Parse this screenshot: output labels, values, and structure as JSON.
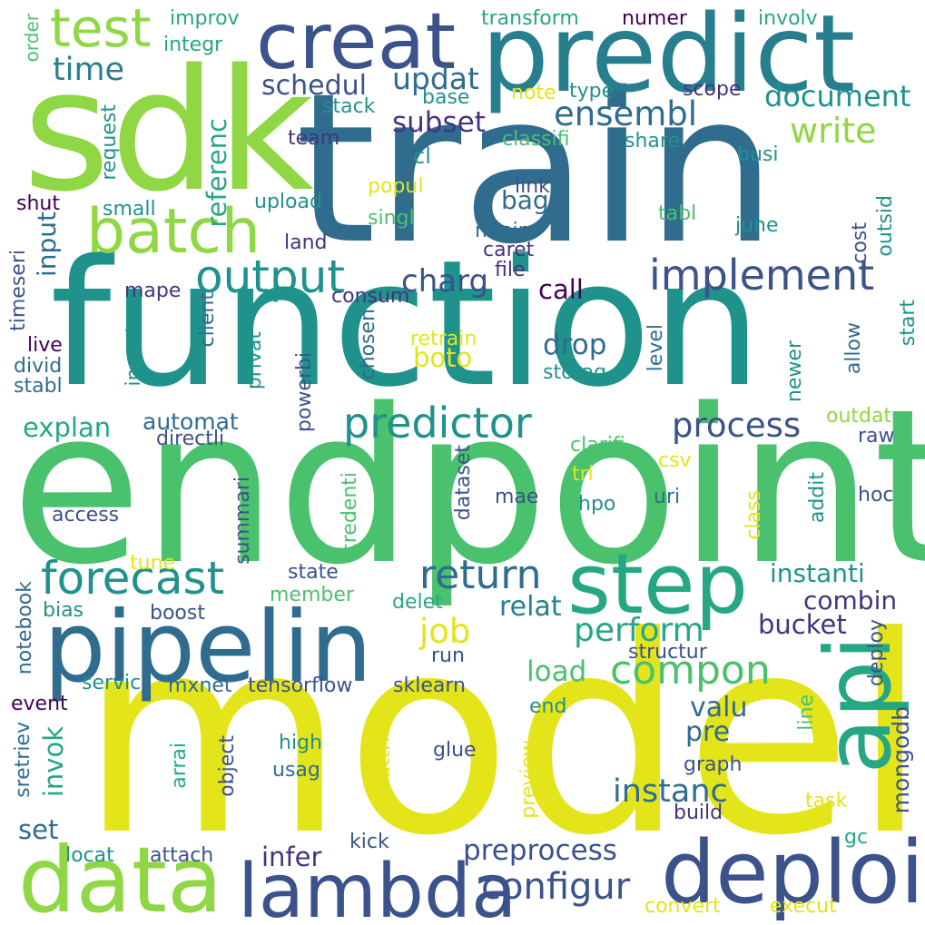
{
  "palette": {
    "yellow": "#e4e41a",
    "lime": "#8fd744",
    "green": "#4ac16d",
    "teal_green": "#26a784",
    "teal": "#20928c",
    "blue_teal": "#277f8e",
    "blue": "#2f6c8e",
    "indigo": "#3b528b",
    "dark_indigo": "#46337e",
    "purple": "#440154"
  },
  "words": [
    {
      "text": "model",
      "color": "yellow"
    },
    {
      "text": "endpoint",
      "color": "green"
    },
    {
      "text": "function",
      "color": "teal"
    },
    {
      "text": "train",
      "color": "blue"
    },
    {
      "text": "sdk",
      "color": "lime"
    },
    {
      "text": "predict",
      "color": "blue_teal"
    },
    {
      "text": "pipelin",
      "color": "blue"
    },
    {
      "text": "data",
      "color": "lime"
    },
    {
      "text": "deploi",
      "color": "indigo"
    },
    {
      "text": "lambda",
      "color": "indigo"
    },
    {
      "text": "creat",
      "color": "indigo"
    },
    {
      "text": "step",
      "color": "teal_green"
    },
    {
      "text": "api",
      "color": "teal_green"
    },
    {
      "text": "batch",
      "color": "lime"
    },
    {
      "text": "test",
      "color": "lime"
    },
    {
      "text": "forecast",
      "color": "teal"
    },
    {
      "text": "output",
      "color": "teal"
    },
    {
      "text": "implement",
      "color": "indigo"
    },
    {
      "text": "predictor",
      "color": "teal"
    },
    {
      "text": "return",
      "color": "blue"
    },
    {
      "text": "compon",
      "color": "green"
    },
    {
      "text": "perform",
      "color": "teal_green"
    },
    {
      "text": "configur",
      "color": "indigo"
    },
    {
      "text": "process",
      "color": "indigo"
    },
    {
      "text": "ensembl",
      "color": "blue"
    },
    {
      "text": "write",
      "color": "lime"
    },
    {
      "text": "document",
      "color": "teal"
    },
    {
      "text": "time",
      "color": "blue_teal"
    },
    {
      "text": "job",
      "color": "yellow"
    },
    {
      "text": "preprocess",
      "color": "indigo"
    },
    {
      "text": "instanc",
      "color": "blue"
    },
    {
      "text": "infer",
      "color": "dark_indigo"
    },
    {
      "text": "schedul",
      "color": "indigo"
    },
    {
      "text": "updat",
      "color": "blue"
    },
    {
      "text": "subset",
      "color": "dark_indigo"
    },
    {
      "text": "charg",
      "color": "indigo"
    },
    {
      "text": "instanti",
      "color": "teal"
    },
    {
      "text": "combin",
      "color": "dark_indigo"
    },
    {
      "text": "bucket",
      "color": "dark_indigo"
    },
    {
      "text": "relat",
      "color": "blue_teal"
    },
    {
      "text": "drop",
      "color": "blue"
    },
    {
      "text": "load",
      "color": "green"
    },
    {
      "text": "valu",
      "color": "blue"
    },
    {
      "text": "pre",
      "color": "blue"
    },
    {
      "text": "automat",
      "color": "blue"
    },
    {
      "text": "explan",
      "color": "teal_green"
    },
    {
      "text": "input",
      "color": "blue"
    },
    {
      "text": "invok",
      "color": "teal_green"
    },
    {
      "text": "set",
      "color": "blue"
    },
    {
      "text": "referenc",
      "color": "teal_green"
    },
    {
      "text": "call",
      "color": "purple"
    },
    {
      "text": "boto",
      "color": "yellow"
    },
    {
      "text": "bag",
      "color": "blue"
    },
    {
      "text": "mongodb",
      "color": "indigo"
    },
    {
      "text": "improv",
      "color": "teal_green"
    },
    {
      "text": "integr",
      "color": "teal_green"
    },
    {
      "text": "transform",
      "color": "teal_green"
    },
    {
      "text": "numer",
      "color": "purple"
    },
    {
      "text": "involv",
      "color": "teal_green"
    },
    {
      "text": "order",
      "color": "green"
    },
    {
      "text": "base",
      "color": "teal"
    },
    {
      "text": "note",
      "color": "yellow"
    },
    {
      "text": "type",
      "color": "teal"
    },
    {
      "text": "scope",
      "color": "dark_indigo"
    },
    {
      "text": "stack",
      "color": "teal"
    },
    {
      "text": "team",
      "color": "dark_indigo"
    },
    {
      "text": "classifi",
      "color": "green"
    },
    {
      "text": "share",
      "color": "teal"
    },
    {
      "text": "cl",
      "color": "teal"
    },
    {
      "text": "busi",
      "color": "teal"
    },
    {
      "text": "request",
      "color": "teal"
    },
    {
      "text": "popul",
      "color": "yellow"
    },
    {
      "text": "link",
      "color": "indigo"
    },
    {
      "text": "upload",
      "color": "teal"
    },
    {
      "text": "tabl",
      "color": "green"
    },
    {
      "text": "small",
      "color": "teal"
    },
    {
      "text": "singl",
      "color": "green"
    },
    {
      "text": "minim",
      "color": "blue"
    },
    {
      "text": "june",
      "color": "teal"
    },
    {
      "text": "shut",
      "color": "purple"
    },
    {
      "text": "land",
      "color": "dark_indigo"
    },
    {
      "text": "caret",
      "color": "dark_indigo"
    },
    {
      "text": "cost",
      "color": "indigo"
    },
    {
      "text": "outsid",
      "color": "teal"
    },
    {
      "text": "file",
      "color": "dark_indigo"
    },
    {
      "text": "timeseri",
      "color": "indigo"
    },
    {
      "text": "mape",
      "color": "dark_indigo"
    },
    {
      "text": "consum",
      "color": "dark_indigo"
    },
    {
      "text": "client",
      "color": "blue"
    },
    {
      "text": "chosen",
      "color": "blue"
    },
    {
      "text": "live",
      "color": "purple"
    },
    {
      "text": "divid",
      "color": "blue"
    },
    {
      "text": "stabl",
      "color": "blue"
    },
    {
      "text": "retrain",
      "color": "yellow"
    },
    {
      "text": "level",
      "color": "blue"
    },
    {
      "text": "start",
      "color": "teal"
    },
    {
      "text": "allow",
      "color": "blue"
    },
    {
      "text": "ingest",
      "color": "teal"
    },
    {
      "text": "privat",
      "color": "teal"
    },
    {
      "text": "powerbi",
      "color": "indigo"
    },
    {
      "text": "storag",
      "color": "teal"
    },
    {
      "text": "newer",
      "color": "teal"
    },
    {
      "text": "outdat",
      "color": "lime"
    },
    {
      "text": "raw",
      "color": "indigo"
    },
    {
      "text": "directli",
      "color": "indigo"
    },
    {
      "text": "clarifi",
      "color": "green"
    },
    {
      "text": "csv",
      "color": "yellow"
    },
    {
      "text": "tri",
      "color": "yellow"
    },
    {
      "text": "mae",
      "color": "indigo"
    },
    {
      "text": "hpo",
      "color": "teal"
    },
    {
      "text": "uri",
      "color": "blue"
    },
    {
      "text": "hoc",
      "color": "indigo"
    },
    {
      "text": "addit",
      "color": "teal"
    },
    {
      "text": "class",
      "color": "yellow"
    },
    {
      "text": "access",
      "color": "indigo"
    },
    {
      "text": "summari",
      "color": "indigo"
    },
    {
      "text": "credenti",
      "color": "green"
    },
    {
      "text": "dataset",
      "color": "indigo"
    },
    {
      "text": "tune",
      "color": "yellow"
    },
    {
      "text": "state",
      "color": "indigo"
    },
    {
      "text": "member",
      "color": "green"
    },
    {
      "text": "notebook",
      "color": "blue"
    },
    {
      "text": "bias",
      "color": "teal"
    },
    {
      "text": "boost",
      "color": "indigo"
    },
    {
      "text": "delet",
      "color": "teal_green"
    },
    {
      "text": "run",
      "color": "indigo"
    },
    {
      "text": "structur",
      "color": "indigo"
    },
    {
      "text": "deploy",
      "color": "indigo"
    },
    {
      "text": "servic",
      "color": "teal"
    },
    {
      "text": "mxnet",
      "color": "blue"
    },
    {
      "text": "tensorflow",
      "color": "indigo"
    },
    {
      "text": "sklearn",
      "color": "indigo"
    },
    {
      "text": "event",
      "color": "purple"
    },
    {
      "text": "end",
      "color": "teal"
    },
    {
      "text": "line",
      "color": "green"
    },
    {
      "text": "sretriev",
      "color": "blue"
    },
    {
      "text": "high",
      "color": "teal"
    },
    {
      "text": "glue",
      "color": "indigo"
    },
    {
      "text": "graph",
      "color": "indigo"
    },
    {
      "text": "object",
      "color": "indigo"
    },
    {
      "text": "usag",
      "color": "blue"
    },
    {
      "text": "arrai",
      "color": "teal_green"
    },
    {
      "text": "attribut",
      "color": "yellow"
    },
    {
      "text": "preview",
      "color": "yellow"
    },
    {
      "text": "task",
      "color": "yellow"
    },
    {
      "text": "build",
      "color": "dark_indigo"
    },
    {
      "text": "kick",
      "color": "indigo"
    },
    {
      "text": "gc",
      "color": "teal_green"
    },
    {
      "text": "locat",
      "color": "teal"
    },
    {
      "text": "attach",
      "color": "indigo"
    },
    {
      "text": "convert",
      "color": "yellow"
    },
    {
      "text": "execut",
      "color": "yellow"
    }
  ]
}
